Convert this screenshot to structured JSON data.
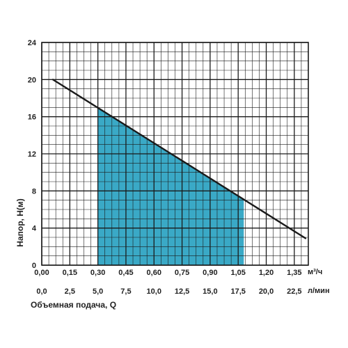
{
  "chart_data": {
    "type": "line",
    "title": "",
    "xlabel": "Объемная подача, Q",
    "ylabel": "Напор, Н(м)",
    "x_unit_top": "м³/ч",
    "x_unit_bottom": "л/мин",
    "x_ticks_m3h": [
      "0,00",
      "0,15",
      "0,30",
      "0,45",
      "0,60",
      "0,75",
      "0,90",
      "1,05",
      "1,20",
      "1,35"
    ],
    "x_ticks_lmin": [
      "0,0",
      "2,5",
      "5,0",
      "7,5",
      "10,0",
      "12,5",
      "15,0",
      "17,5",
      "20,0",
      "22,5"
    ],
    "y_ticks": [
      "0",
      "4",
      "8",
      "12",
      "16",
      "20",
      "24"
    ],
    "xlim": [
      0,
      1.425
    ],
    "ylim": [
      0,
      24
    ],
    "grid": true,
    "series": [
      {
        "x": [
          0.06,
          1.41
        ],
        "y": [
          20,
          2.9
        ],
        "color": "#1a1a1a"
      }
    ],
    "working_range": {
      "x": [
        0.3,
        1.08
      ],
      "fill": "#3aa9c6"
    }
  }
}
